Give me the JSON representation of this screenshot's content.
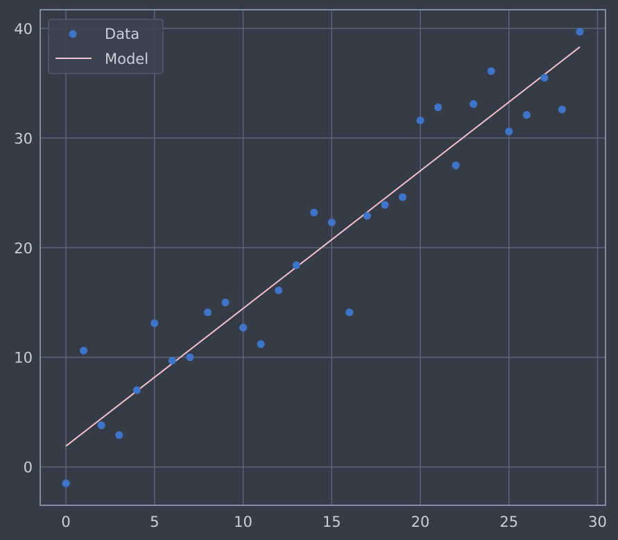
{
  "chart_data": {
    "type": "scatter",
    "title": "",
    "xlabel": "",
    "ylabel": "",
    "xlim": [
      -1.45,
      30.45
    ],
    "ylim": [
      -3.5,
      41.7
    ],
    "xticks": [
      0,
      5,
      10,
      15,
      20,
      25,
      30
    ],
    "yticks": [
      0,
      10,
      20,
      30,
      40
    ],
    "grid": true,
    "legend_position": "top-left",
    "series": [
      {
        "name": "Data",
        "kind": "scatter",
        "color": "#3f74c8",
        "x": [
          0,
          1,
          2,
          3,
          4,
          5,
          6,
          7,
          8,
          9,
          10,
          11,
          12,
          13,
          14,
          15,
          16,
          17,
          18,
          19,
          20,
          21,
          22,
          23,
          24,
          25,
          26,
          27,
          28,
          29
        ],
        "y": [
          -1.5,
          10.6,
          3.8,
          2.9,
          7.0,
          13.1,
          9.7,
          10.0,
          14.1,
          15.0,
          12.7,
          11.2,
          16.1,
          18.4,
          23.2,
          22.3,
          14.1,
          22.9,
          23.9,
          24.6,
          31.6,
          32.8,
          27.5,
          33.1,
          36.1,
          30.6,
          32.1,
          35.5,
          32.6,
          39.7
        ]
      },
      {
        "name": "Model",
        "kind": "line",
        "color": "#f4c2ce",
        "x": [
          0,
          29
        ],
        "y": [
          1.9,
          38.3
        ]
      }
    ]
  },
  "colors": {
    "background": "#353c48",
    "grid": "#5a6577",
    "spine": "#9aaac4",
    "text": "#c8d0dc",
    "legend_bg": "#3b4250",
    "legend_border": "#5a6577"
  }
}
